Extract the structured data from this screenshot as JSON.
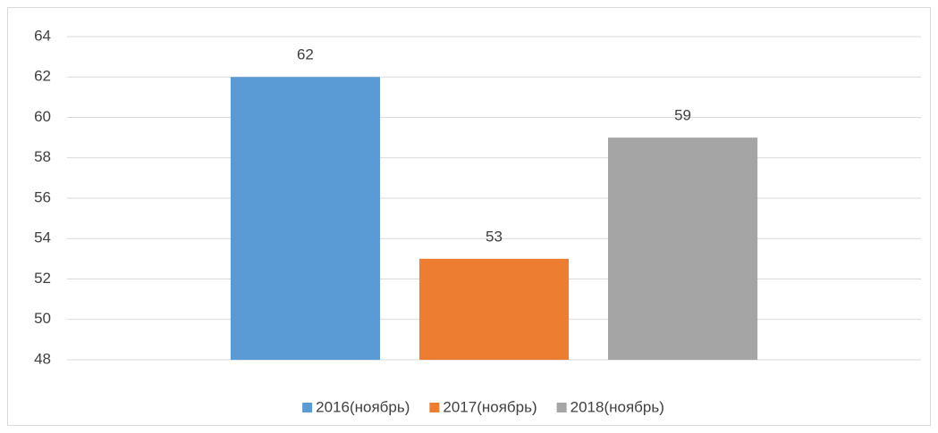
{
  "chart_data": {
    "type": "bar",
    "categories": [
      null
    ],
    "series": [
      {
        "name": "2016(ноябрь)",
        "color": "#5b9bd5",
        "values": [
          62
        ]
      },
      {
        "name": "2017(ноябрь)",
        "color": "#ed7d31",
        "values": [
          53
        ]
      },
      {
        "name": "2018(ноябрь)",
        "color": "#a5a5a5",
        "values": [
          59
        ]
      }
    ],
    "ylim": [
      48,
      64
    ],
    "yticks": [
      48,
      50,
      52,
      54,
      56,
      58,
      60,
      62,
      64
    ],
    "grid": true,
    "legend": "bottom"
  }
}
